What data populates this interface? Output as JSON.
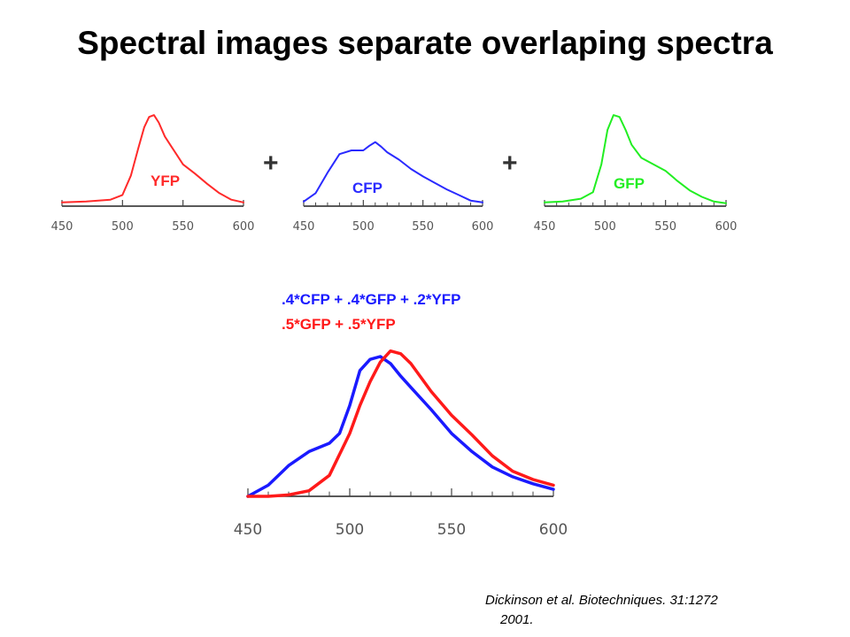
{
  "title": "Spectral images separate overlaping spectra",
  "operators": {
    "plus1": "+",
    "plus2": "+"
  },
  "combined": {
    "formula_blue": ".4*CFP + .4*GFP + .2*YFP",
    "formula_red": ".5*GFP + .5*YFP"
  },
  "citation": {
    "line1": "Dickinson et al. Biotechniques. 31:1272",
    "line2": "2001."
  },
  "colors": {
    "yfp": "#ff2a2a",
    "cfp": "#2a2aff",
    "gfp": "#22ee22",
    "blue": "#1a1aff",
    "red": "#ff1a1a"
  },
  "chart_data": [
    {
      "type": "line",
      "series_label": "YFP",
      "color": "#ff2a2a",
      "xlim": [
        450,
        600
      ],
      "ylim": [
        0,
        1
      ],
      "xticks": [
        450,
        500,
        550,
        600
      ],
      "x": [
        450,
        470,
        490,
        500,
        507,
        513,
        518,
        522,
        526,
        530,
        535,
        540,
        545,
        550,
        560,
        570,
        580,
        590,
        600
      ],
      "y": [
        0.04,
        0.05,
        0.07,
        0.12,
        0.33,
        0.62,
        0.85,
        0.96,
        0.98,
        0.9,
        0.75,
        0.65,
        0.55,
        0.45,
        0.35,
        0.24,
        0.14,
        0.07,
        0.04
      ]
    },
    {
      "type": "line",
      "series_label": "CFP",
      "color": "#2a2aff",
      "xlim": [
        450,
        600
      ],
      "ylim": [
        0,
        1
      ],
      "xticks": [
        450,
        500,
        550,
        600
      ],
      "x": [
        450,
        460,
        470,
        480,
        490,
        500,
        505,
        510,
        515,
        520,
        530,
        540,
        550,
        560,
        570,
        580,
        590,
        600
      ],
      "y": [
        0.05,
        0.14,
        0.36,
        0.56,
        0.6,
        0.6,
        0.65,
        0.69,
        0.64,
        0.58,
        0.5,
        0.4,
        0.32,
        0.25,
        0.18,
        0.12,
        0.06,
        0.04
      ]
    },
    {
      "type": "line",
      "series_label": "GFP",
      "color": "#22ee22",
      "xlim": [
        450,
        600
      ],
      "ylim": [
        0,
        1
      ],
      "xticks": [
        450,
        500,
        550,
        600
      ],
      "x": [
        450,
        465,
        480,
        490,
        497,
        502,
        507,
        512,
        517,
        522,
        530,
        540,
        550,
        560,
        570,
        580,
        590,
        600
      ],
      "y": [
        0.04,
        0.05,
        0.08,
        0.15,
        0.45,
        0.82,
        0.98,
        0.96,
        0.82,
        0.66,
        0.52,
        0.45,
        0.38,
        0.27,
        0.17,
        0.1,
        0.05,
        0.03
      ]
    },
    {
      "type": "line",
      "xlim": [
        450,
        600
      ],
      "ylim": [
        0,
        1
      ],
      "xticks": [
        450,
        500,
        550,
        600
      ],
      "series": [
        {
          "color": "#1a1aff",
          "x": [
            450,
            460,
            470,
            480,
            490,
            495,
            500,
            505,
            510,
            515,
            520,
            525,
            530,
            540,
            550,
            560,
            570,
            580,
            590,
            600
          ],
          "y": [
            0.0,
            0.08,
            0.22,
            0.32,
            0.38,
            0.45,
            0.65,
            0.9,
            0.98,
            1.0,
            0.95,
            0.86,
            0.78,
            0.62,
            0.45,
            0.32,
            0.21,
            0.14,
            0.09,
            0.05
          ]
        },
        {
          "color": "#ff1a1a",
          "x": [
            450,
            460,
            470,
            480,
            490,
            500,
            505,
            510,
            515,
            520,
            525,
            530,
            540,
            550,
            560,
            570,
            580,
            590,
            600
          ],
          "y": [
            0.0,
            0.0,
            0.01,
            0.04,
            0.15,
            0.45,
            0.65,
            0.82,
            0.96,
            1.04,
            1.02,
            0.95,
            0.75,
            0.58,
            0.44,
            0.29,
            0.18,
            0.12,
            0.08
          ]
        }
      ]
    }
  ]
}
